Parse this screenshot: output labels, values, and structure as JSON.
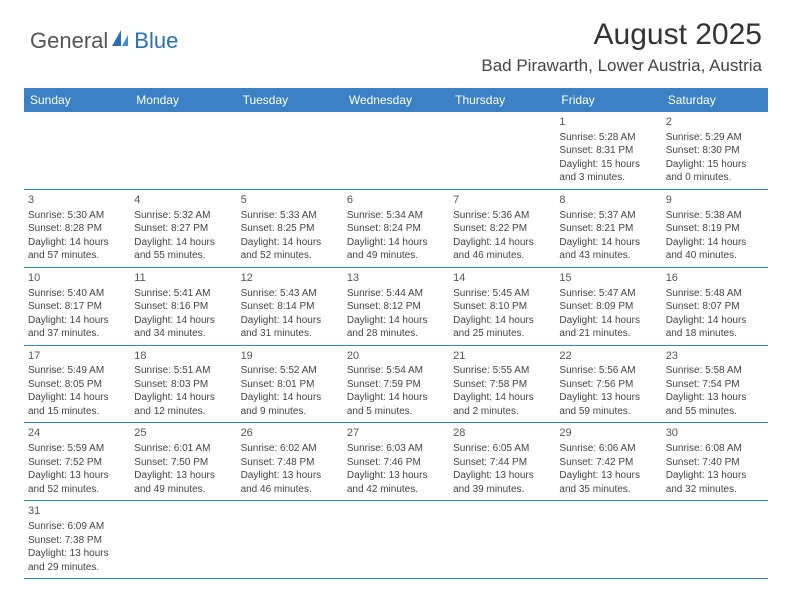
{
  "logo": {
    "general": "General",
    "blue": "Blue"
  },
  "title": "August 2025",
  "location": "Bad Pirawarth, Lower Austria, Austria",
  "colors": {
    "header_bg": "#3b82c4",
    "header_text": "#ffffff",
    "border": "#3b82c4",
    "text": "#444444",
    "background": "#ffffff"
  },
  "day_headers": [
    "Sunday",
    "Monday",
    "Tuesday",
    "Wednesday",
    "Thursday",
    "Friday",
    "Saturday"
  ],
  "weeks": [
    [
      null,
      null,
      null,
      null,
      null,
      {
        "n": "1",
        "sr": "Sunrise: 5:28 AM",
        "ss": "Sunset: 8:31 PM",
        "d1": "Daylight: 15 hours",
        "d2": "and 3 minutes."
      },
      {
        "n": "2",
        "sr": "Sunrise: 5:29 AM",
        "ss": "Sunset: 8:30 PM",
        "d1": "Daylight: 15 hours",
        "d2": "and 0 minutes."
      }
    ],
    [
      {
        "n": "3",
        "sr": "Sunrise: 5:30 AM",
        "ss": "Sunset: 8:28 PM",
        "d1": "Daylight: 14 hours",
        "d2": "and 57 minutes."
      },
      {
        "n": "4",
        "sr": "Sunrise: 5:32 AM",
        "ss": "Sunset: 8:27 PM",
        "d1": "Daylight: 14 hours",
        "d2": "and 55 minutes."
      },
      {
        "n": "5",
        "sr": "Sunrise: 5:33 AM",
        "ss": "Sunset: 8:25 PM",
        "d1": "Daylight: 14 hours",
        "d2": "and 52 minutes."
      },
      {
        "n": "6",
        "sr": "Sunrise: 5:34 AM",
        "ss": "Sunset: 8:24 PM",
        "d1": "Daylight: 14 hours",
        "d2": "and 49 minutes."
      },
      {
        "n": "7",
        "sr": "Sunrise: 5:36 AM",
        "ss": "Sunset: 8:22 PM",
        "d1": "Daylight: 14 hours",
        "d2": "and 46 minutes."
      },
      {
        "n": "8",
        "sr": "Sunrise: 5:37 AM",
        "ss": "Sunset: 8:21 PM",
        "d1": "Daylight: 14 hours",
        "d2": "and 43 minutes."
      },
      {
        "n": "9",
        "sr": "Sunrise: 5:38 AM",
        "ss": "Sunset: 8:19 PM",
        "d1": "Daylight: 14 hours",
        "d2": "and 40 minutes."
      }
    ],
    [
      {
        "n": "10",
        "sr": "Sunrise: 5:40 AM",
        "ss": "Sunset: 8:17 PM",
        "d1": "Daylight: 14 hours",
        "d2": "and 37 minutes."
      },
      {
        "n": "11",
        "sr": "Sunrise: 5:41 AM",
        "ss": "Sunset: 8:16 PM",
        "d1": "Daylight: 14 hours",
        "d2": "and 34 minutes."
      },
      {
        "n": "12",
        "sr": "Sunrise: 5:43 AM",
        "ss": "Sunset: 8:14 PM",
        "d1": "Daylight: 14 hours",
        "d2": "and 31 minutes."
      },
      {
        "n": "13",
        "sr": "Sunrise: 5:44 AM",
        "ss": "Sunset: 8:12 PM",
        "d1": "Daylight: 14 hours",
        "d2": "and 28 minutes."
      },
      {
        "n": "14",
        "sr": "Sunrise: 5:45 AM",
        "ss": "Sunset: 8:10 PM",
        "d1": "Daylight: 14 hours",
        "d2": "and 25 minutes."
      },
      {
        "n": "15",
        "sr": "Sunrise: 5:47 AM",
        "ss": "Sunset: 8:09 PM",
        "d1": "Daylight: 14 hours",
        "d2": "and 21 minutes."
      },
      {
        "n": "16",
        "sr": "Sunrise: 5:48 AM",
        "ss": "Sunset: 8:07 PM",
        "d1": "Daylight: 14 hours",
        "d2": "and 18 minutes."
      }
    ],
    [
      {
        "n": "17",
        "sr": "Sunrise: 5:49 AM",
        "ss": "Sunset: 8:05 PM",
        "d1": "Daylight: 14 hours",
        "d2": "and 15 minutes."
      },
      {
        "n": "18",
        "sr": "Sunrise: 5:51 AM",
        "ss": "Sunset: 8:03 PM",
        "d1": "Daylight: 14 hours",
        "d2": "and 12 minutes."
      },
      {
        "n": "19",
        "sr": "Sunrise: 5:52 AM",
        "ss": "Sunset: 8:01 PM",
        "d1": "Daylight: 14 hours",
        "d2": "and 9 minutes."
      },
      {
        "n": "20",
        "sr": "Sunrise: 5:54 AM",
        "ss": "Sunset: 7:59 PM",
        "d1": "Daylight: 14 hours",
        "d2": "and 5 minutes."
      },
      {
        "n": "21",
        "sr": "Sunrise: 5:55 AM",
        "ss": "Sunset: 7:58 PM",
        "d1": "Daylight: 14 hours",
        "d2": "and 2 minutes."
      },
      {
        "n": "22",
        "sr": "Sunrise: 5:56 AM",
        "ss": "Sunset: 7:56 PM",
        "d1": "Daylight: 13 hours",
        "d2": "and 59 minutes."
      },
      {
        "n": "23",
        "sr": "Sunrise: 5:58 AM",
        "ss": "Sunset: 7:54 PM",
        "d1": "Daylight: 13 hours",
        "d2": "and 55 minutes."
      }
    ],
    [
      {
        "n": "24",
        "sr": "Sunrise: 5:59 AM",
        "ss": "Sunset: 7:52 PM",
        "d1": "Daylight: 13 hours",
        "d2": "and 52 minutes."
      },
      {
        "n": "25",
        "sr": "Sunrise: 6:01 AM",
        "ss": "Sunset: 7:50 PM",
        "d1": "Daylight: 13 hours",
        "d2": "and 49 minutes."
      },
      {
        "n": "26",
        "sr": "Sunrise: 6:02 AM",
        "ss": "Sunset: 7:48 PM",
        "d1": "Daylight: 13 hours",
        "d2": "and 46 minutes."
      },
      {
        "n": "27",
        "sr": "Sunrise: 6:03 AM",
        "ss": "Sunset: 7:46 PM",
        "d1": "Daylight: 13 hours",
        "d2": "and 42 minutes."
      },
      {
        "n": "28",
        "sr": "Sunrise: 6:05 AM",
        "ss": "Sunset: 7:44 PM",
        "d1": "Daylight: 13 hours",
        "d2": "and 39 minutes."
      },
      {
        "n": "29",
        "sr": "Sunrise: 6:06 AM",
        "ss": "Sunset: 7:42 PM",
        "d1": "Daylight: 13 hours",
        "d2": "and 35 minutes."
      },
      {
        "n": "30",
        "sr": "Sunrise: 6:08 AM",
        "ss": "Sunset: 7:40 PM",
        "d1": "Daylight: 13 hours",
        "d2": "and 32 minutes."
      }
    ],
    [
      {
        "n": "31",
        "sr": "Sunrise: 6:09 AM",
        "ss": "Sunset: 7:38 PM",
        "d1": "Daylight: 13 hours",
        "d2": "and 29 minutes."
      },
      null,
      null,
      null,
      null,
      null,
      null
    ]
  ]
}
